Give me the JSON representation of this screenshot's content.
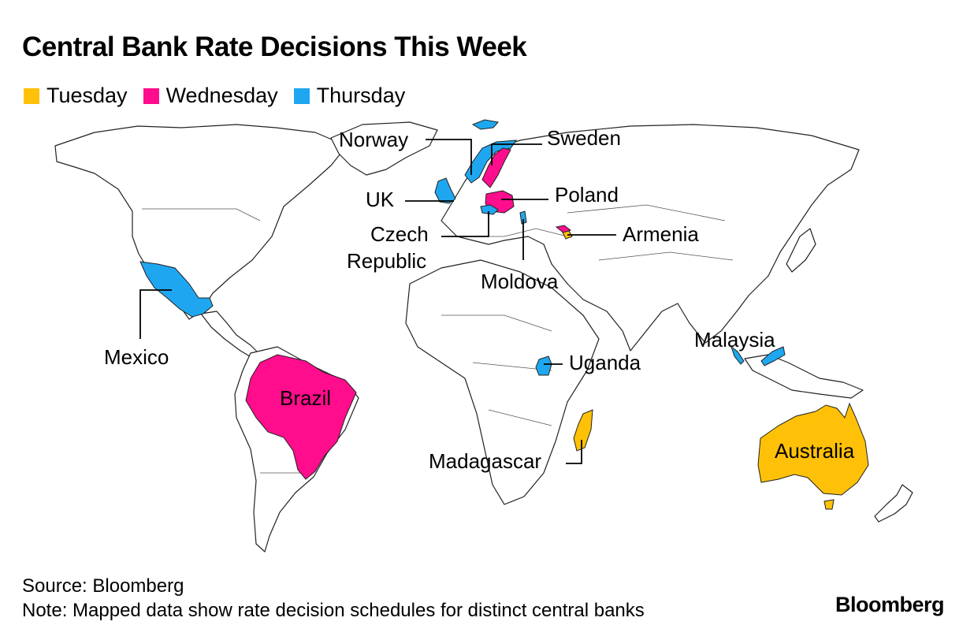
{
  "title": "Central Bank Rate Decisions This Week",
  "legend": [
    {
      "label": "Tuesday",
      "color": "#FFC107"
    },
    {
      "label": "Wednesday",
      "color": "#FF0D8D"
    },
    {
      "label": "Thursday",
      "color": "#1EA7F0"
    }
  ],
  "countries": {
    "norway": {
      "label": "Norway",
      "day": "Thursday"
    },
    "sweden": {
      "label": "Sweden",
      "day": "Wednesday"
    },
    "uk": {
      "label": "UK",
      "day": "Thursday"
    },
    "poland": {
      "label": "Poland",
      "day": "Wednesday"
    },
    "czech": {
      "label_line1": "Czech",
      "label_line2": "Republic",
      "day": "Thursday"
    },
    "armenia": {
      "label": "Armenia",
      "day": "Tuesday"
    },
    "moldova": {
      "label": "Moldova",
      "day": "Thursday"
    },
    "mexico": {
      "label": "Mexico",
      "day": "Thursday"
    },
    "brazil": {
      "label": "Brazil",
      "day": "Wednesday"
    },
    "uganda": {
      "label": "Uganda",
      "day": "Thursday"
    },
    "malaysia": {
      "label": "Malaysia",
      "day": "Thursday"
    },
    "madagascar": {
      "label": "Madagascar",
      "day": "Tuesday"
    },
    "australia": {
      "label": "Australia",
      "day": "Tuesday"
    }
  },
  "footer": {
    "source": "Source: Bloomberg",
    "note": "Note: Mapped data show rate decision schedules for distinct central banks"
  },
  "brand": "Bloomberg"
}
